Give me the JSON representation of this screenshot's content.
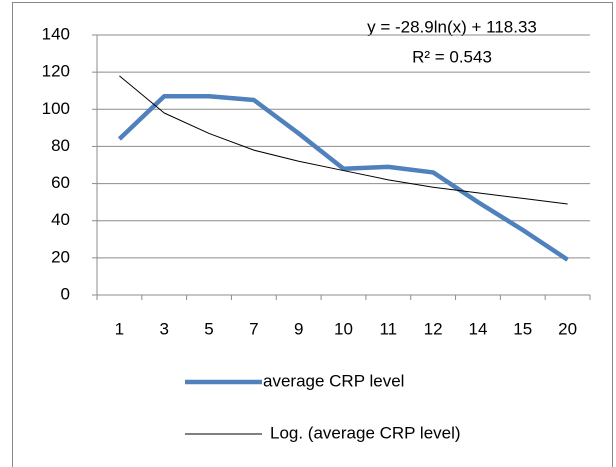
{
  "chart_data": {
    "type": "line",
    "annotations": [
      "y = -28.9ln(x) + 118.33",
      "R² = 0.543"
    ],
    "categories": [
      "1",
      "3",
      "5",
      "7",
      "9",
      "10",
      "11",
      "12",
      "14",
      "15",
      "20"
    ],
    "series": [
      {
        "name": "average CRP level",
        "color": "#4f81bd",
        "values": [
          84,
          107,
          107,
          105,
          87,
          68,
          69,
          66,
          50,
          35,
          19
        ]
      },
      {
        "name": "Log. (average CRP level)",
        "color": "#000000",
        "values": [
          118,
          98,
          87,
          78,
          72,
          67,
          62,
          58,
          55,
          52,
          49
        ]
      }
    ],
    "ylim": [
      0,
      140
    ],
    "yticks": [
      0,
      20,
      40,
      60,
      80,
      100,
      120,
      140
    ],
    "grid": true,
    "legend": "bottom"
  }
}
